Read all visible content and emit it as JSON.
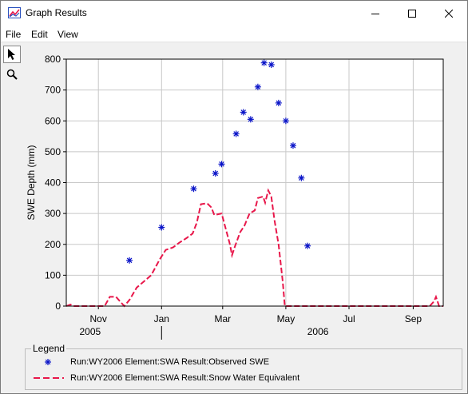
{
  "window": {
    "title": "Graph Results"
  },
  "menu": [
    "File",
    "Edit",
    "View"
  ],
  "tools": [
    {
      "icon": "pointer-arrow-icon"
    },
    {
      "icon": "zoom-magnifier-icon"
    }
  ],
  "colors": {
    "observed": "#0a14c8",
    "simulated": "#e8174a",
    "grid": "#c8c8c8"
  },
  "legend": {
    "title": "Legend",
    "items": [
      {
        "label": "Run:WY2006 Element:SWA Result:Observed SWE"
      },
      {
        "label": "Run:WY2006 Element:SWA Result:Snow Water Equivalent"
      }
    ]
  },
  "chart_data": {
    "type": "line",
    "ylabel": "SWE Depth (mm)",
    "ylim": [
      0,
      800
    ],
    "yticks": [
      0,
      100,
      200,
      300,
      400,
      500,
      600,
      700,
      800
    ],
    "xlim": [
      "2005-10-01",
      "2006-09-30"
    ],
    "xticks": [
      {
        "label": "Nov",
        "date": "2005-11-01"
      },
      {
        "label": "Jan",
        "date": "2006-01-01"
      },
      {
        "label": "Mar",
        "date": "2006-03-01"
      },
      {
        "label": "May",
        "date": "2006-05-01"
      },
      {
        "label": "Jul",
        "date": "2006-07-01"
      },
      {
        "label": "Sep",
        "date": "2006-09-01"
      }
    ],
    "years": [
      {
        "label": "2005",
        "date": "2005-10-24"
      },
      {
        "label": "2006",
        "date": "2006-06-01"
      }
    ],
    "year_divider": "2006-01-01",
    "series": [
      {
        "name": "Run:WY2006 Element:SWA Result:Observed SWE",
        "style": "asterisk",
        "points": [
          [
            "2005-12-01",
            148
          ],
          [
            "2006-01-01",
            255
          ],
          [
            "2006-02-01",
            380
          ],
          [
            "2006-02-22",
            430
          ],
          [
            "2006-02-28",
            460
          ],
          [
            "2006-03-14",
            558
          ],
          [
            "2006-03-21",
            628
          ],
          [
            "2006-03-28",
            605
          ],
          [
            "2006-04-04",
            710
          ],
          [
            "2006-04-10",
            788
          ],
          [
            "2006-04-17",
            782
          ],
          [
            "2006-04-24",
            658
          ],
          [
            "2006-05-01",
            600
          ],
          [
            "2006-05-08",
            520
          ],
          [
            "2006-05-16",
            415
          ],
          [
            "2006-05-22",
            195
          ]
        ]
      },
      {
        "name": "Run:WY2006 Element:SWA Result:Snow Water Equivalent",
        "style": "dashed",
        "points": [
          [
            "2005-10-01",
            0
          ],
          [
            "2005-10-05",
            5
          ],
          [
            "2005-10-08",
            0
          ],
          [
            "2005-11-07",
            0
          ],
          [
            "2005-11-12",
            30
          ],
          [
            "2005-11-18",
            30
          ],
          [
            "2005-11-22",
            15
          ],
          [
            "2005-11-26",
            0
          ],
          [
            "2005-12-01",
            20
          ],
          [
            "2005-12-08",
            60
          ],
          [
            "2005-12-15",
            80
          ],
          [
            "2005-12-22",
            100
          ],
          [
            "2005-12-30",
            150
          ],
          [
            "2006-01-05",
            182
          ],
          [
            "2006-01-12",
            190
          ],
          [
            "2006-01-18",
            205
          ],
          [
            "2006-01-25",
            220
          ],
          [
            "2006-01-31",
            235
          ],
          [
            "2006-02-04",
            270
          ],
          [
            "2006-02-08",
            330
          ],
          [
            "2006-02-14",
            333
          ],
          [
            "2006-02-18",
            320
          ],
          [
            "2006-02-21",
            295
          ],
          [
            "2006-02-28",
            300
          ],
          [
            "2006-03-04",
            250
          ],
          [
            "2006-03-08",
            200
          ],
          [
            "2006-03-10",
            165
          ],
          [
            "2006-03-13",
            195
          ],
          [
            "2006-03-18",
            240
          ],
          [
            "2006-03-22",
            260
          ],
          [
            "2006-03-27",
            300
          ],
          [
            "2006-04-01",
            310
          ],
          [
            "2006-04-04",
            350
          ],
          [
            "2006-04-09",
            355
          ],
          [
            "2006-04-11",
            335
          ],
          [
            "2006-04-14",
            375
          ],
          [
            "2006-04-17",
            355
          ],
          [
            "2006-04-20",
            280
          ],
          [
            "2006-04-24",
            200
          ],
          [
            "2006-04-28",
            80
          ],
          [
            "2006-04-30",
            0
          ],
          [
            "2006-09-17",
            0
          ],
          [
            "2006-09-21",
            15
          ],
          [
            "2006-09-23",
            30
          ],
          [
            "2006-09-26",
            0
          ],
          [
            "2006-09-30",
            0
          ]
        ]
      }
    ]
  }
}
